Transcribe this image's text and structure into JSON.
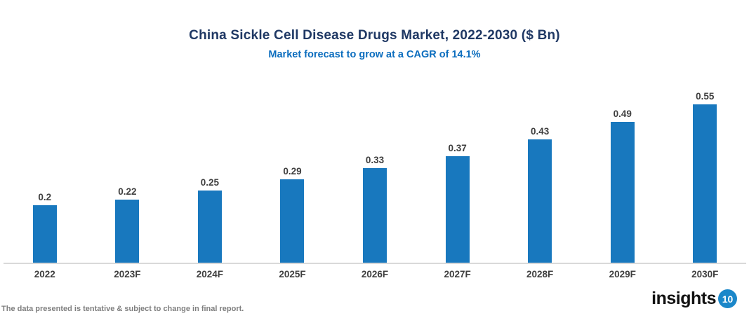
{
  "header": {
    "title": "China Sickle Cell Disease Drugs Market, 2022-2030 ($ Bn)",
    "subtitle": "Market forecast to grow at a CAGR of 14.1%"
  },
  "chart_data": {
    "type": "bar",
    "title": "China Sickle Cell Disease Drugs Market, 2022-2030 ($ Bn)",
    "subtitle": "Market forecast to grow at a CAGR of 14.1%",
    "categories": [
      "2022",
      "2023F",
      "2024F",
      "2025F",
      "2026F",
      "2027F",
      "2028F",
      "2029F",
      "2030F"
    ],
    "values": [
      0.2,
      0.22,
      0.25,
      0.29,
      0.33,
      0.37,
      0.43,
      0.49,
      0.55
    ],
    "value_labels": [
      "0.2",
      "0.22",
      "0.25",
      "0.29",
      "0.33",
      "0.37",
      "0.43",
      "0.49",
      "0.55"
    ],
    "xlabel": "",
    "ylabel": "",
    "ylim": [
      0,
      0.68
    ],
    "grid": false,
    "legend": false,
    "y_axis_visible": false,
    "bar_color": "#1878be"
  },
  "footer": {
    "note": "The data presented is tentative & subject to change in final report.",
    "logo_text": "insights",
    "logo_badge": "10"
  },
  "colors": {
    "title": "#1f3864",
    "subtitle": "#0b6dbe",
    "bar": "#1878be",
    "value_label": "#3f3f3f",
    "tick_label": "#3f3f3f",
    "axis_line": "#d9d9d9",
    "footnote": "#7f7f7f",
    "logo_badge_bg": "#1b87c9",
    "logo_text": "#111111"
  }
}
